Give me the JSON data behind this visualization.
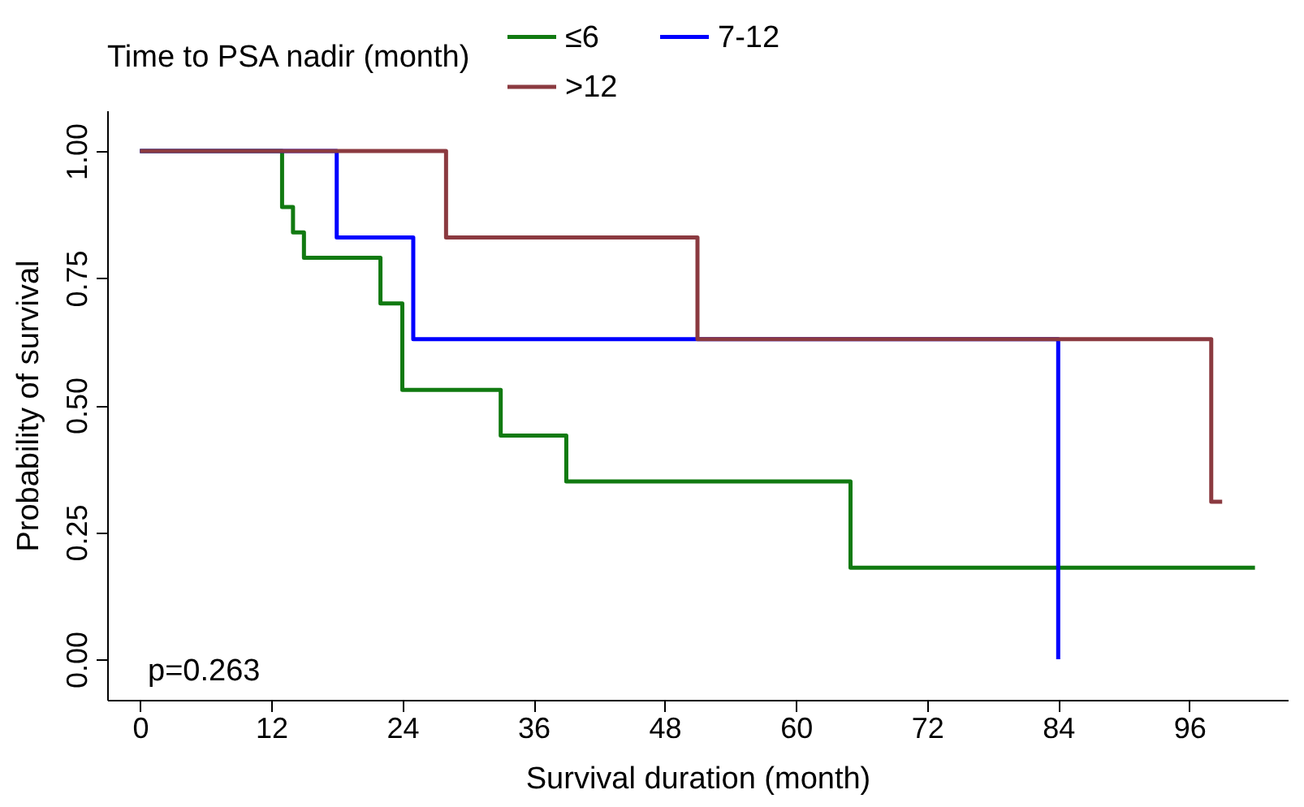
{
  "chart_data": {
    "type": "step",
    "xlabel": "Survival duration (month)",
    "ylabel": "Probability of survival",
    "legend_title": "Time to PSA nadir (month)",
    "legend": "top right",
    "grid": false,
    "xlim": [
      -3,
      105
    ],
    "xticks": [
      0,
      12,
      24,
      36,
      48,
      60,
      72,
      84,
      96
    ],
    "ylim": [
      -0.08,
      1.08
    ],
    "yticks": [
      {
        "value": 0,
        "label": "0.00"
      },
      {
        "value": 0.25,
        "label": "0.25"
      },
      {
        "value": 0.5,
        "label": "0.50"
      },
      {
        "value": 0.75,
        "label": "0.75"
      },
      {
        "value": 1,
        "label": "1.00"
      }
    ],
    "series": [
      {
        "name": "≤6",
        "color": "#117a11",
        "x": [
          0,
          13,
          14,
          15,
          22,
          24,
          33,
          39,
          65,
          102
        ],
        "values": [
          1,
          0.89,
          0.84,
          0.79,
          0.7,
          0.53,
          0.44,
          0.35,
          0.18,
          0.18
        ]
      },
      {
        "name": "7-12",
        "color": "#0000ff",
        "x": [
          0,
          18,
          25,
          84
        ],
        "values": [
          1,
          0.83,
          0.63,
          0
        ]
      },
      {
        "name": ">12",
        "color": "#8b3a40",
        "x": [
          0,
          28,
          51,
          98,
          99
        ],
        "values": [
          1,
          0.83,
          0.63,
          0.31,
          0.31
        ]
      }
    ],
    "annotations": [
      "p=0.263"
    ]
  }
}
